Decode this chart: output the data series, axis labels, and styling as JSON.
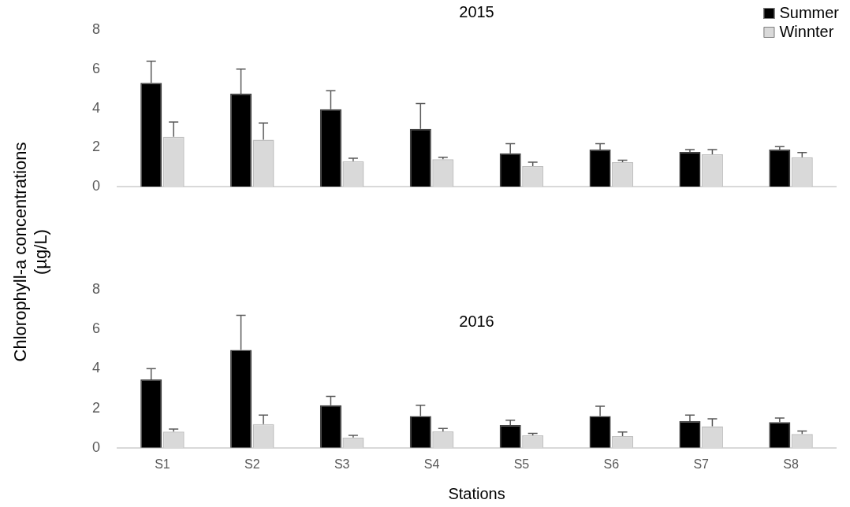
{
  "chart_data": [
    {
      "type": "bar",
      "title": "2015",
      "ylabel": "Chlorophyll-a concentrations (µg/L)",
      "categories": [
        null,
        null,
        null,
        null,
        null,
        null,
        null,
        null
      ],
      "series": [
        {
          "name": "Summer",
          "color": "#000000",
          "values": [
            5.3,
            4.75,
            3.95,
            2.95,
            1.7,
            1.9,
            1.78,
            1.9
          ],
          "errors": [
            [
              5.3,
              6.4
            ],
            [
              4.75,
              6.0
            ],
            [
              3.95,
              4.9
            ],
            [
              2.95,
              4.25
            ],
            [
              1.7,
              2.2
            ],
            [
              1.9,
              2.2
            ],
            [
              1.78,
              1.9
            ],
            [
              1.9,
              2.05
            ]
          ]
        },
        {
          "name": "Winnter",
          "color": "#d9d9d9",
          "values": [
            2.55,
            2.4,
            1.3,
            1.4,
            1.05,
            1.25,
            1.65,
            1.5
          ],
          "errors": [
            [
              2.55,
              3.3
            ],
            [
              2.4,
              3.25
            ],
            [
              1.3,
              1.45
            ],
            [
              1.4,
              1.5
            ],
            [
              1.05,
              1.25
            ],
            [
              1.25,
              1.35
            ],
            [
              1.65,
              1.9
            ],
            [
              1.5,
              1.75
            ]
          ]
        }
      ],
      "ylim": [
        0,
        8
      ],
      "yticks": [
        0,
        2,
        4,
        6,
        8
      ],
      "grid": false,
      "legend": "top right",
      "tick_labels": "y"
    },
    {
      "type": "bar",
      "title": "2016",
      "xlabel": "Stations",
      "categories": [
        "S1",
        "S2",
        "S3",
        "S4",
        "S5",
        "S6",
        "S7",
        "S8"
      ],
      "series": [
        {
          "color": "#000000",
          "values": [
            3.45,
            4.95,
            2.15,
            1.6,
            1.15,
            1.6,
            1.35,
            1.3
          ],
          "errors": [
            [
              3.45,
              4.0
            ],
            [
              4.95,
              6.7
            ],
            [
              2.15,
              2.6
            ],
            [
              1.6,
              2.15
            ],
            [
              1.15,
              1.4
            ],
            [
              1.6,
              2.1
            ],
            [
              1.35,
              1.65
            ],
            [
              1.3,
              1.5
            ]
          ]
        },
        {
          "color": "#d9d9d9",
          "values": [
            0.82,
            1.2,
            0.52,
            0.83,
            0.63,
            0.59,
            1.09,
            0.7
          ],
          "errors": [
            [
              0.82,
              0.95
            ],
            [
              1.2,
              1.65
            ],
            [
              0.52,
              0.63
            ],
            [
              0.83,
              0.98
            ],
            [
              0.63,
              0.73
            ],
            [
              0.59,
              0.8
            ],
            [
              1.09,
              1.46
            ],
            [
              0.7,
              0.85
            ]
          ]
        }
      ],
      "ylim": [
        0,
        8
      ],
      "yticks": [
        0,
        2,
        4,
        6,
        8
      ],
      "grid": false
    }
  ]
}
